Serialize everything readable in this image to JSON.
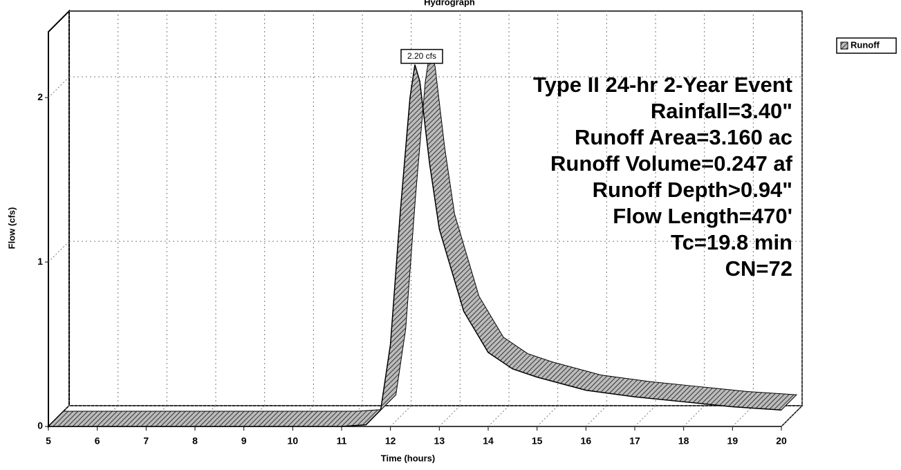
{
  "chart_data": {
    "type": "area",
    "title": "Hydrograph",
    "x_label": "Time (hours)",
    "y_label": "Flow (cfs)",
    "x": [
      5,
      6,
      7,
      8,
      9,
      10,
      11,
      11.5,
      11.8,
      12,
      12.2,
      12.4,
      12.5,
      12.6,
      12.8,
      13,
      13.5,
      14,
      14.5,
      15,
      16,
      17,
      18,
      19,
      20
    ],
    "series": [
      {
        "name": "Runoff",
        "color": "#bbbbbb",
        "values": [
          0,
          0,
          0,
          0,
          0,
          0,
          0,
          0.01,
          0.1,
          0.5,
          1.3,
          2.0,
          2.2,
          2.1,
          1.6,
          1.2,
          0.7,
          0.45,
          0.35,
          0.3,
          0.22,
          0.18,
          0.15,
          0.12,
          0.1
        ],
        "value_labels": [
          null,
          null,
          null,
          null,
          null,
          null,
          null,
          null,
          null,
          null,
          null,
          null,
          "2.20 cfs",
          null,
          null,
          null,
          null,
          null,
          null,
          null,
          null,
          null,
          null,
          null,
          null
        ]
      }
    ],
    "xlim": [
      5,
      20
    ],
    "ylim": [
      0,
      2.4
    ],
    "xticks": [
      5,
      6,
      7,
      8,
      9,
      10,
      11,
      12,
      13,
      14,
      15,
      16,
      17,
      18,
      19,
      20
    ],
    "yticks": [
      0,
      1,
      2
    ],
    "grid": true,
    "annotations": [
      "Type II 24-hr 2-Year Event",
      "Rainfall=3.40\"",
      "Runoff Area=3.160 ac",
      "Runoff Volume=0.247 af",
      "Runoff Depth>0.94\"",
      "Flow Length=470'",
      "Tc=19.8 min",
      "CN=72"
    ]
  }
}
